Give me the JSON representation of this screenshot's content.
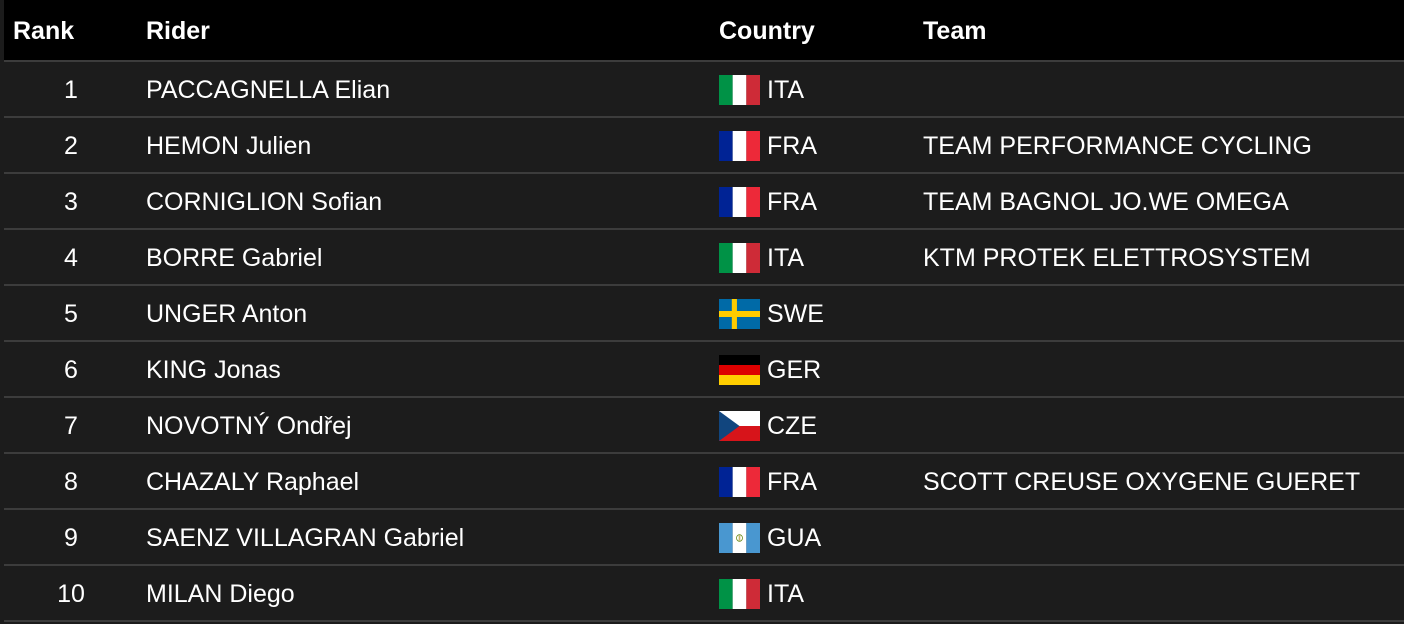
{
  "table": {
    "headers": {
      "rank": "Rank",
      "rider": "Rider",
      "country": "Country",
      "team": "Team"
    },
    "rows": [
      {
        "rank": "1",
        "rider": "PACCAGNELLA Elian",
        "country": "ITA",
        "flag": "italy-flag-icon",
        "team": ""
      },
      {
        "rank": "2",
        "rider": "HEMON Julien",
        "country": "FRA",
        "flag": "france-flag-icon",
        "team": "TEAM PERFORMANCE CYCLING"
      },
      {
        "rank": "3",
        "rider": "CORNIGLION Sofian",
        "country": "FRA",
        "flag": "france-flag-icon",
        "team": "TEAM BAGNOL JO.WE OMEGA"
      },
      {
        "rank": "4",
        "rider": "BORRE Gabriel",
        "country": "ITA",
        "flag": "italy-flag-icon",
        "team": "KTM PROTEK ELETTROSYSTEM"
      },
      {
        "rank": "5",
        "rider": "UNGER Anton",
        "country": "SWE",
        "flag": "sweden-flag-icon",
        "team": ""
      },
      {
        "rank": "6",
        "rider": "KING Jonas",
        "country": "GER",
        "flag": "germany-flag-icon",
        "team": ""
      },
      {
        "rank": "7",
        "rider": "NOVOTNÝ Ondřej",
        "country": "CZE",
        "flag": "czechia-flag-icon",
        "team": ""
      },
      {
        "rank": "8",
        "rider": "CHAZALY Raphael",
        "country": "FRA",
        "flag": "france-flag-icon",
        "team": "SCOTT CREUSE OXYGENE GUERET"
      },
      {
        "rank": "9",
        "rider": "SAENZ VILLAGRAN Gabriel",
        "country": "GUA",
        "flag": "guatemala-flag-icon",
        "team": ""
      },
      {
        "rank": "10",
        "rider": "MILAN Diego",
        "country": "ITA",
        "flag": "italy-flag-icon",
        "team": ""
      }
    ]
  },
  "colors": {
    "background": "#1c1c1c",
    "header_background": "#000000",
    "row_divider": "#3c3c3c",
    "text": "#ffffff"
  }
}
